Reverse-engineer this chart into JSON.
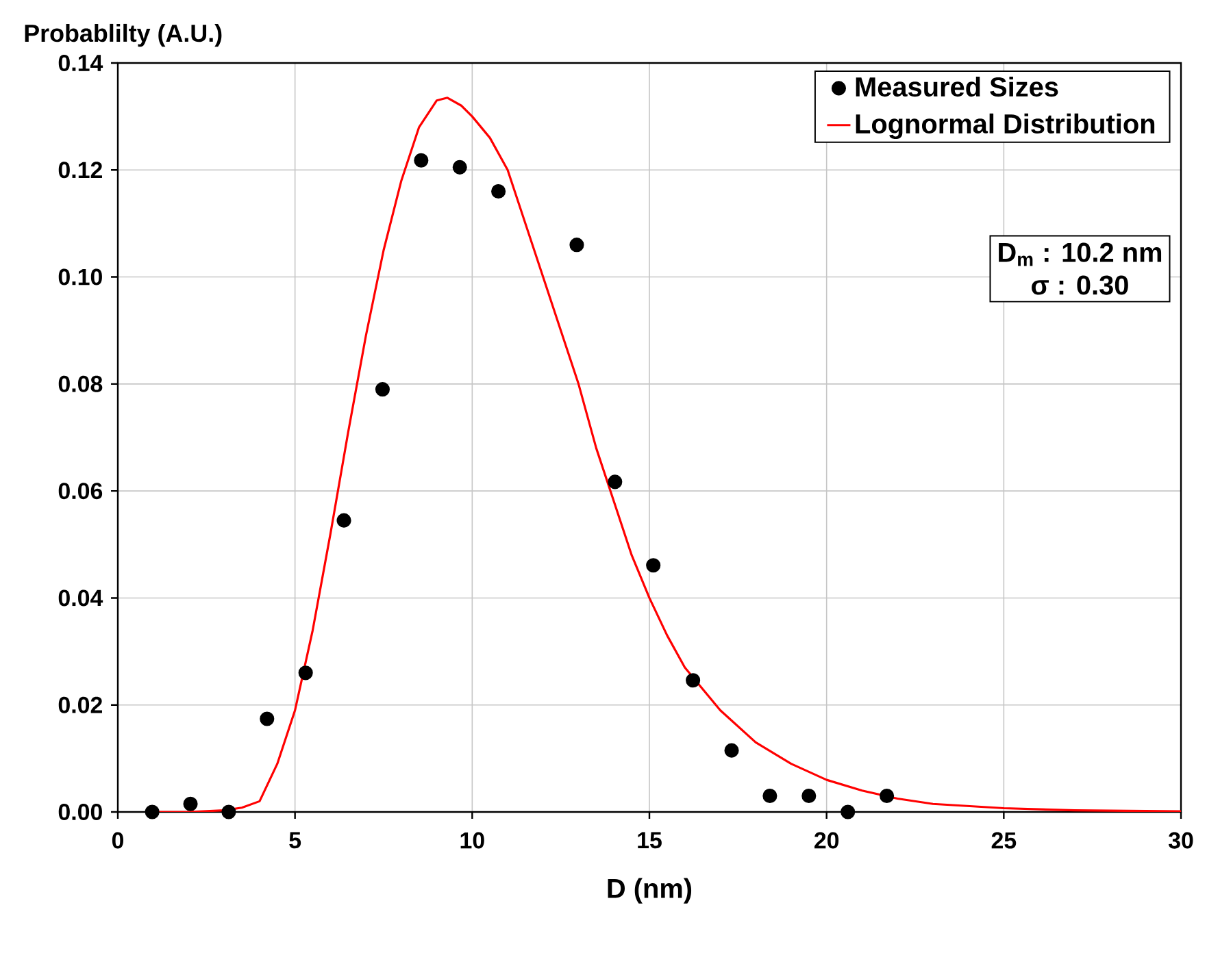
{
  "chart_data": {
    "type": "scatter",
    "xlabel": "D  (nm)",
    "ylabel": "Probablilty (A.U.)",
    "xlim": [
      0,
      30
    ],
    "xticks": [
      0,
      5,
      10,
      15,
      20,
      25,
      30
    ],
    "ylim": [
      0,
      0.14
    ],
    "yticks": [
      {
        "value": 0,
        "label": "0.00"
      },
      {
        "value": 0.02,
        "label": "0.02"
      },
      {
        "value": 0.04,
        "label": "0.04"
      },
      {
        "value": 0.06,
        "label": "0.06"
      },
      {
        "value": 0.08,
        "label": "0.08"
      },
      {
        "value": 0.1,
        "label": "0.10"
      },
      {
        "value": 0.12,
        "label": "0.12"
      },
      {
        "value": 0.14,
        "label": "0.14"
      }
    ],
    "grid": true,
    "legend": "top right",
    "annotations": [
      "D$_{m}$ : 10.2 nm",
      "σ :   0.30"
    ],
    "series": [
      {
        "name": "Measured Sizes",
        "type": "scatter",
        "marker": "circle",
        "color": "#000000",
        "x": [
          0.97,
          2.05,
          3.13,
          4.21,
          5.3,
          6.38,
          7.47,
          8.56,
          9.65,
          10.74,
          11.86,
          12.95,
          14.03,
          15.11,
          16.23,
          17.32,
          18.4,
          19.5,
          20.6,
          21.7
        ],
        "values": [
          0,
          0.0015,
          0,
          0.0174,
          0.026,
          0.0545,
          0.079,
          0.1218,
          0.1205,
          0.116,
          null,
          0.106,
          0.0617,
          0.0461,
          0.0246,
          0.0115,
          0.003,
          0.003,
          0,
          0.003
        ]
      },
      {
        "name": "Lognormal Distribution",
        "type": "line",
        "marker": "none",
        "line_style": "solid",
        "color": "#ff0000",
        "x": [
          1,
          2,
          3,
          3.5,
          4,
          4.5,
          5,
          5.5,
          6,
          6.5,
          7,
          7.5,
          8,
          8.5,
          9,
          9.3,
          9.7,
          10,
          10.5,
          11,
          11.5,
          12,
          12.5,
          13,
          13.5,
          14,
          14.5,
          15,
          15.5,
          16,
          16.5,
          17,
          18,
          19,
          20,
          21,
          22,
          23,
          25,
          27,
          30
        ],
        "values": [
          0,
          0,
          0.0003,
          0.0008,
          0.002,
          0.009,
          0.019,
          0.034,
          0.052,
          0.071,
          0.089,
          0.105,
          0.118,
          0.128,
          0.133,
          0.1335,
          0.132,
          0.13,
          0.126,
          0.12,
          0.11,
          0.1,
          0.09,
          0.08,
          0.068,
          0.058,
          0.048,
          0.04,
          0.033,
          0.027,
          0.023,
          0.019,
          0.013,
          0.009,
          0.006,
          0.004,
          0.0025,
          0.0015,
          0.0007,
          0.0003,
          0.0001
        ]
      }
    ]
  }
}
